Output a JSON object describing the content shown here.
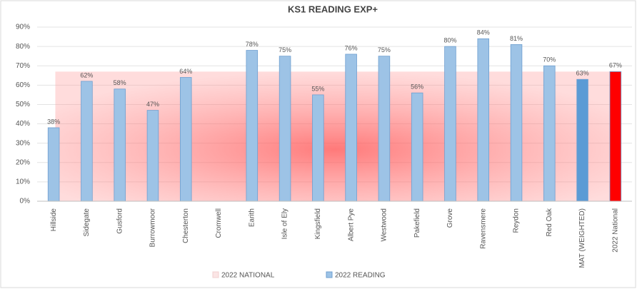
{
  "chart_data": {
    "type": "bar",
    "title": "KS1 READING EXP+",
    "categories": [
      "Hillside",
      "Sidegate",
      "Gusford",
      "Burrowmoor",
      "Chesterton",
      "Cromwell",
      "Earith",
      "Isle of Ely",
      "Kingsfield",
      "Albert Pye",
      "Westwood",
      "Pakefield",
      "Grove",
      "Ravensmere",
      "Reydon",
      "Red Oak",
      "MAT (WEIGHTED)",
      "2022 National"
    ],
    "series": [
      {
        "name": "2022 READING",
        "color": "#9dc3e6",
        "colors": [
          "#9dc3e6",
          "#9dc3e6",
          "#9dc3e6",
          "#9dc3e6",
          "#9dc3e6",
          "#9dc3e6",
          "#9dc3e6",
          "#9dc3e6",
          "#9dc3e6",
          "#9dc3e6",
          "#9dc3e6",
          "#9dc3e6",
          "#9dc3e6",
          "#9dc3e6",
          "#9dc3e6",
          "#9dc3e6",
          "#5b9bd5",
          "#ff0000"
        ],
        "values": [
          38,
          62,
          58,
          47,
          64,
          null,
          78,
          75,
          55,
          76,
          75,
          56,
          80,
          84,
          81,
          70,
          63,
          67
        ],
        "value_labels": [
          "38%",
          "62%",
          "58%",
          "47%",
          "64%",
          null,
          "78%",
          "75%",
          "55%",
          "76%",
          "75%",
          "56%",
          "80%",
          "84%",
          "81%",
          "70%",
          "63%",
          "67%"
        ]
      }
    ],
    "national": {
      "name": "2022 NATIONAL",
      "value": 67,
      "color": "#ff8080"
    },
    "ylim": [
      0,
      90
    ],
    "yticks": [
      {
        "value": 0,
        "label": "0%"
      },
      {
        "value": 10,
        "label": "10%"
      },
      {
        "value": 20,
        "label": "20%"
      },
      {
        "value": 30,
        "label": "30%"
      },
      {
        "value": 40,
        "label": "40%"
      },
      {
        "value": 50,
        "label": "50%"
      },
      {
        "value": 60,
        "label": "60%"
      },
      {
        "value": 70,
        "label": "70%"
      },
      {
        "value": 80,
        "label": "80%"
      },
      {
        "value": 90,
        "label": "90%"
      }
    ],
    "grid": true
  }
}
